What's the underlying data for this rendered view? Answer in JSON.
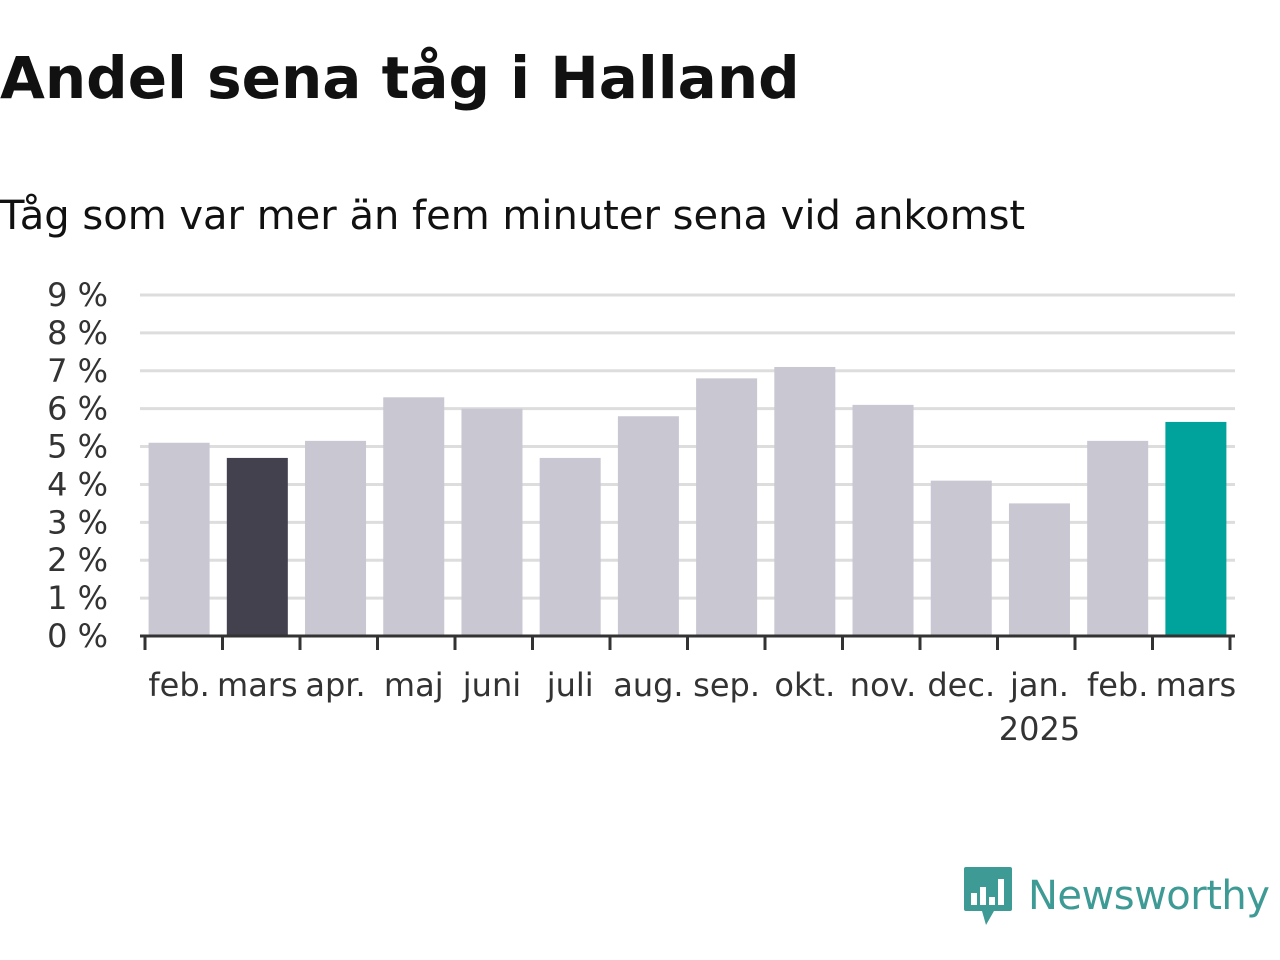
{
  "chart_data": {
    "type": "bar",
    "title": "Andel sena tåg i Halland",
    "subtitle": "Tåg som var mer än fem minuter sena vid ankomst",
    "categories": [
      "feb.",
      "mars",
      "apr.",
      "maj",
      "juni",
      "juli",
      "aug.",
      "sep.",
      "okt.",
      "nov.",
      "dec.",
      "jan.",
      "feb.",
      "mars"
    ],
    "year_label": "2025",
    "year_label_under": 11,
    "values": [
      5.1,
      4.7,
      5.15,
      6.3,
      6.0,
      4.7,
      5.8,
      6.8,
      7.1,
      6.1,
      4.1,
      3.5,
      5.15,
      5.65
    ],
    "highlight": {
      "1": "#43414e",
      "13": "#00a39b"
    },
    "bar_color": "#c8c7d2",
    "ylim": [
      0,
      9
    ],
    "yticks": [
      "0 %",
      "1 %",
      "2 %",
      "3 %",
      "4 %",
      "5 %",
      "6 %",
      "7 %",
      "8 %",
      "9 %"
    ],
    "grid": true,
    "xlabel": "",
    "ylabel": ""
  },
  "branding": {
    "logo_text": "Newsworthy",
    "logo_icon": "bar-chart-speech-bubble-icon",
    "color": "#3d9a94"
  }
}
